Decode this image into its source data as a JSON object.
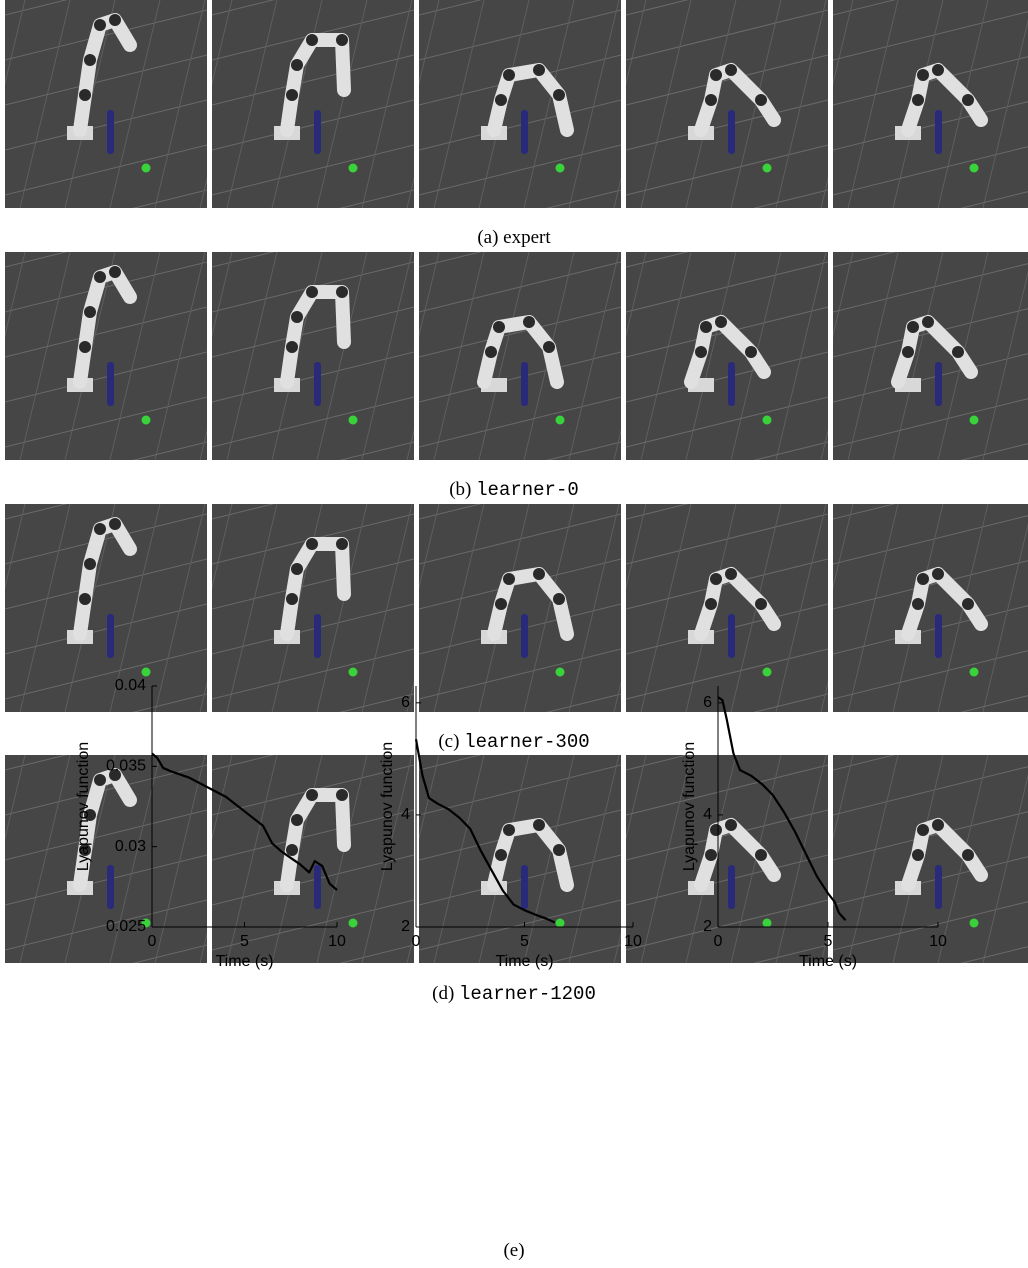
{
  "rows": [
    {
      "label": "(a)",
      "name": "expert"
    },
    {
      "label": "(b)",
      "name": "learner-0"
    },
    {
      "label": "(c)",
      "name": "learner-300"
    },
    {
      "label": "(d)",
      "name": "learner-1200"
    }
  ],
  "caption": "(e)",
  "chart_data": [
    {
      "type": "line",
      "xlabel": "Time (s)",
      "ylabel": "Lyapunov function",
      "color": "#000000",
      "xlim": [
        0,
        10
      ],
      "xticks": [
        0,
        5,
        10
      ],
      "ylim": [
        0.025,
        0.04
      ],
      "yticks": [
        0.025,
        0.03,
        0.035,
        0.04
      ],
      "x": [
        0,
        0.3,
        0.6,
        1,
        2,
        3,
        4,
        5,
        6,
        6.5,
        7,
        7.5,
        8,
        8.5,
        8.8,
        9.2,
        9.6,
        10
      ],
      "values": [
        0.0358,
        0.0355,
        0.0349,
        0.0347,
        0.0343,
        0.0337,
        0.0331,
        0.0322,
        0.0313,
        0.0302,
        0.0297,
        0.0293,
        0.0289,
        0.0284,
        0.0291,
        0.0288,
        0.0277,
        0.0273
      ]
    },
    {
      "type": "line",
      "xlabel": "Time (s)",
      "ylabel": "Lyapunov function",
      "color": "#000000",
      "xlim": [
        0,
        10
      ],
      "xticks": [
        0,
        5,
        10
      ],
      "ylim": [
        2,
        6.3
      ],
      "yticks": [
        2,
        4,
        6
      ],
      "x": [
        0,
        0.3,
        0.6,
        1,
        1.5,
        2,
        2.5,
        3,
        3.5,
        4,
        4.5,
        5,
        5.5,
        6,
        6.4
      ],
      "values": [
        5.35,
        4.7,
        4.3,
        4.2,
        4.1,
        3.95,
        3.75,
        3.35,
        3.0,
        2.65,
        2.4,
        2.3,
        2.22,
        2.15,
        2.08
      ]
    },
    {
      "type": "line",
      "xlabel": "Time (s)",
      "ylabel": "Lyapunov function",
      "color": "#000000",
      "xlim": [
        0,
        10
      ],
      "xticks": [
        0,
        5,
        10
      ],
      "ylim": [
        2,
        6.3
      ],
      "yticks": [
        2,
        4,
        6
      ],
      "x": [
        0,
        0.2,
        0.4,
        0.7,
        1,
        1.5,
        2,
        2.5,
        3,
        3.5,
        4,
        4.5,
        5,
        5.3,
        5.5,
        5.8
      ],
      "values": [
        6.1,
        6.05,
        5.7,
        5.1,
        4.8,
        4.7,
        4.55,
        4.35,
        4.05,
        3.7,
        3.3,
        2.9,
        2.6,
        2.45,
        2.25,
        2.12
      ]
    }
  ]
}
